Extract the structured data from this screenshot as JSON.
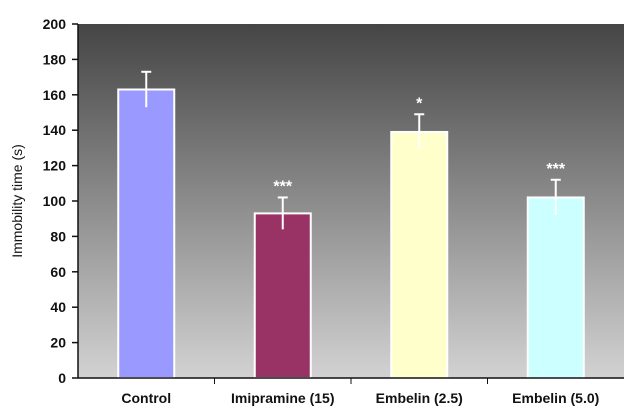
{
  "chart_data": {
    "type": "bar",
    "title": "",
    "xlabel": "",
    "ylabel": "Immobility time (s)",
    "categories": [
      "Control",
      "Imipramine (15)",
      "Embelin (2.5)",
      "Embelin (5.0)"
    ],
    "values": [
      163,
      93,
      139,
      102
    ],
    "errors": [
      10,
      9,
      10,
      10
    ],
    "significance": [
      "",
      "***",
      "*",
      "***"
    ],
    "bar_colors": [
      "#9999ff",
      "#993366",
      "#ffffcc",
      "#ccffff"
    ],
    "ylim": [
      0,
      200
    ],
    "yticks": [
      "0",
      "20",
      "40",
      "60",
      "80",
      "100",
      "120",
      "140",
      "160",
      "180",
      "200"
    ],
    "grid": false,
    "legend": "none",
    "background": {
      "top_color": "#454545",
      "bottom_color": "#d2d2d2"
    }
  }
}
